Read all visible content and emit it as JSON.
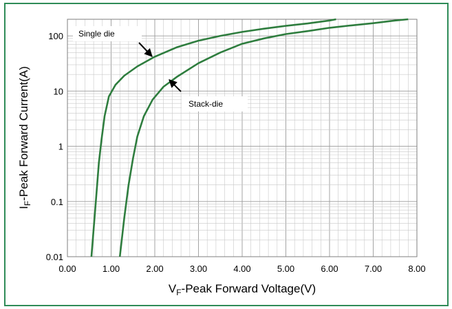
{
  "chart_data": {
    "type": "line",
    "x_axis": {
      "label_main": "V",
      "label_sub": "F",
      "label_rest": "-Peak Forward Voltage(V)",
      "range": [
        0,
        8
      ],
      "ticks": [
        "0.00",
        "1.00",
        "2.00",
        "3.00",
        "4.00",
        "5.00",
        "6.00",
        "7.00",
        "8.00"
      ]
    },
    "y_axis": {
      "label_main": "I",
      "label_sub": "F",
      "label_rest": "-Peak Forward Current(A)",
      "scale": "log",
      "range": [
        0.01,
        200
      ],
      "ticks": [
        "0.01",
        "0.1",
        "1",
        "10",
        "100"
      ]
    },
    "grid": true,
    "series": [
      {
        "name": "Single die",
        "color": "#2e7d3e",
        "x": [
          0.55,
          0.65,
          0.72,
          0.78,
          0.85,
          0.95,
          1.1,
          1.3,
          1.6,
          2.0,
          2.5,
          3.0,
          3.5,
          4.0,
          4.5,
          5.0,
          5.5,
          6.0,
          6.15
        ],
        "y": [
          0.01,
          0.1,
          0.5,
          1.3,
          3.5,
          8,
          13,
          19,
          28,
          42,
          62,
          82,
          100,
          118,
          135,
          152,
          168,
          190,
          200
        ]
      },
      {
        "name": "Stack-die",
        "color": "#2e7d3e",
        "x": [
          1.2,
          1.3,
          1.4,
          1.5,
          1.6,
          1.75,
          1.95,
          2.2,
          2.5,
          3.0,
          3.5,
          4.0,
          4.5,
          5.0,
          5.5,
          6.0,
          6.5,
          7.0,
          7.5,
          7.8
        ],
        "y": [
          0.01,
          0.05,
          0.2,
          0.6,
          1.5,
          3.5,
          7,
          12,
          18,
          32,
          50,
          72,
          90,
          108,
          122,
          140,
          155,
          170,
          190,
          200
        ]
      }
    ],
    "annotations": [
      {
        "text": "Single die",
        "series": "Single die"
      },
      {
        "text": "Stack-die",
        "series": "Stack-die"
      }
    ]
  }
}
